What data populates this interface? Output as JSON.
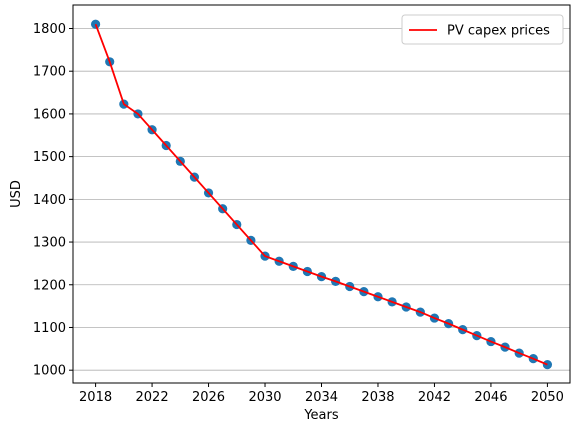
{
  "chart_data": {
    "type": "line",
    "title": "",
    "xlabel": "Years",
    "ylabel": "USD",
    "xlim": [
      2016.4,
      2051.6
    ],
    "ylim": [
      970,
      1855
    ],
    "xticks": [
      2018,
      2022,
      2026,
      2030,
      2034,
      2038,
      2042,
      2046,
      2050
    ],
    "yticks": [
      1000,
      1100,
      1200,
      1300,
      1400,
      1500,
      1600,
      1700,
      1800
    ],
    "grid": "horizontal",
    "legend_position": "top-right",
    "series": [
      {
        "name": "PV capex prices",
        "line_color": "#ff0000",
        "marker_color": "#1f77b4",
        "x": [
          2018,
          2019,
          2020,
          2021,
          2022,
          2023,
          2024,
          2025,
          2026,
          2027,
          2028,
          2029,
          2030,
          2031,
          2032,
          2033,
          2034,
          2035,
          2036,
          2037,
          2038,
          2039,
          2040,
          2041,
          2042,
          2043,
          2044,
          2045,
          2046,
          2047,
          2048,
          2049,
          2050
        ],
        "y": [
          1810,
          1722,
          1623,
          1600,
          1563,
          1526,
          1489,
          1452,
          1415,
          1378,
          1341,
          1304,
          1267,
          1255,
          1243,
          1231,
          1219,
          1208,
          1196,
          1184,
          1172,
          1160,
          1148,
          1136,
          1122,
          1109,
          1095,
          1081,
          1067,
          1054,
          1040,
          1027,
          1013
        ]
      }
    ]
  }
}
